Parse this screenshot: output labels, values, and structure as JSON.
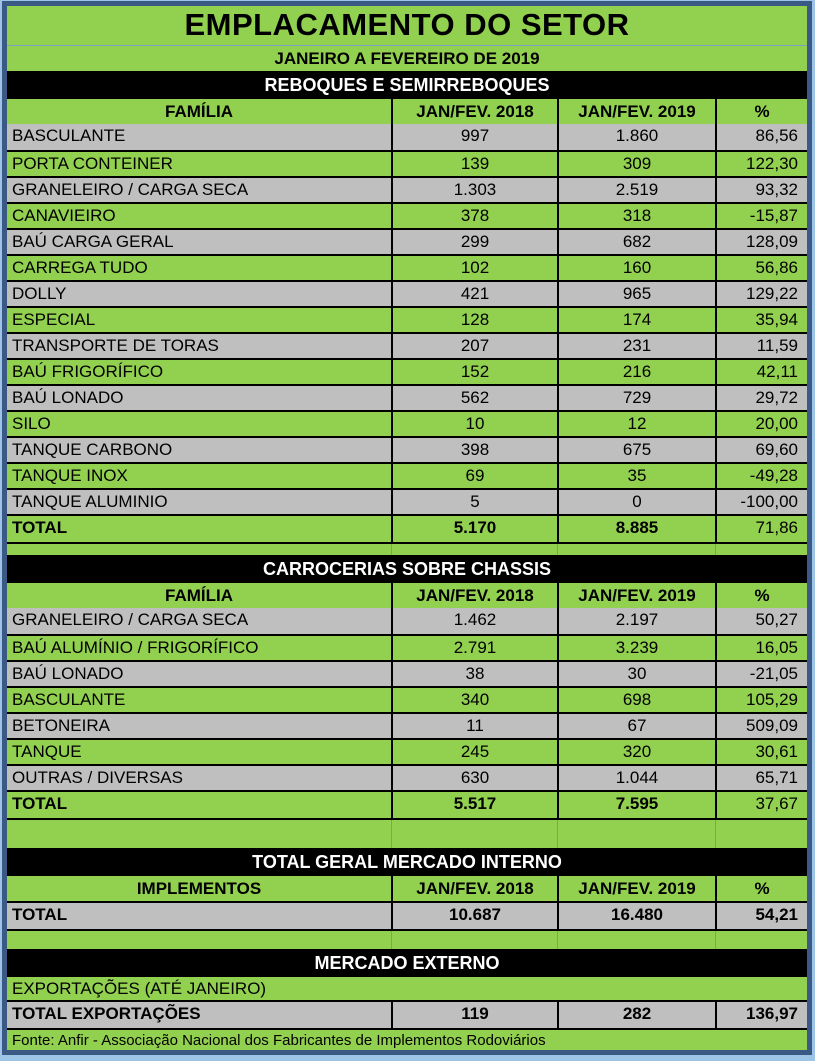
{
  "page": {
    "title": "EMPLACAMENTO DO SETOR",
    "subtitle": "JANEIRO A FEVEREIRO DE 2019"
  },
  "sections": [
    {
      "band": "REBOQUES E SEMIRREBOQUES",
      "columns": [
        "FAMÍLIA",
        "JAN/FEV. 2018",
        "JAN/FEV. 2019",
        "%"
      ],
      "rows": [
        {
          "family": "BASCULANTE",
          "y2018": "997",
          "y2019": "1.860",
          "pct": "86,56"
        },
        {
          "family": "PORTA CONTEINER",
          "y2018": "139",
          "y2019": "309",
          "pct": "122,30"
        },
        {
          "family": "GRANELEIRO / CARGA SECA",
          "y2018": "1.303",
          "y2019": "2.519",
          "pct": "93,32"
        },
        {
          "family": "CANAVIEIRO",
          "y2018": "378",
          "y2019": "318",
          "pct": "-15,87"
        },
        {
          "family": "BAÚ CARGA GERAL",
          "y2018": "299",
          "y2019": "682",
          "pct": "128,09"
        },
        {
          "family": "CARREGA TUDO",
          "y2018": "102",
          "y2019": "160",
          "pct": "56,86"
        },
        {
          "family": "DOLLY",
          "y2018": "421",
          "y2019": "965",
          "pct": "129,22"
        },
        {
          "family": "ESPECIAL",
          "y2018": "128",
          "y2019": "174",
          "pct": "35,94"
        },
        {
          "family": "TRANSPORTE DE TORAS",
          "y2018": "207",
          "y2019": "231",
          "pct": "11,59"
        },
        {
          "family": "BAÚ FRIGORÍFICO",
          "y2018": "152",
          "y2019": "216",
          "pct": "42,11"
        },
        {
          "family": "BAÚ LONADO",
          "y2018": "562",
          "y2019": "729",
          "pct": "29,72"
        },
        {
          "family": "SILO",
          "y2018": "10",
          "y2019": "12",
          "pct": "20,00"
        },
        {
          "family": "TANQUE CARBONO",
          "y2018": "398",
          "y2019": "675",
          "pct": "69,60"
        },
        {
          "family": "TANQUE INOX",
          "y2018": "69",
          "y2019": "35",
          "pct": "-49,28"
        },
        {
          "family": "TANQUE ALUMINIO",
          "y2018": "5",
          "y2019": "0",
          "pct": "-100,00"
        }
      ],
      "total": {
        "label": "TOTAL",
        "y2018": "5.170",
        "y2019": "8.885",
        "pct": "71,86"
      }
    },
    {
      "band": "CARROCERIAS SOBRE CHASSIS",
      "columns": [
        "FAMÍLIA",
        "JAN/FEV. 2018",
        "JAN/FEV. 2019",
        "%"
      ],
      "rows": [
        {
          "family": "GRANELEIRO / CARGA SECA",
          "y2018": "1.462",
          "y2019": "2.197",
          "pct": "50,27"
        },
        {
          "family": "BAÚ ALUMÍNIO / FRIGORÍFICO",
          "y2018": "2.791",
          "y2019": "3.239",
          "pct": "16,05"
        },
        {
          "family": "BAÚ LONADO",
          "y2018": "38",
          "y2019": "30",
          "pct": "-21,05"
        },
        {
          "family": "BASCULANTE",
          "y2018": "340",
          "y2019": "698",
          "pct": "105,29"
        },
        {
          "family": "BETONEIRA",
          "y2018": "11",
          "y2019": "67",
          "pct": "509,09"
        },
        {
          "family": "TANQUE",
          "y2018": "245",
          "y2019": "320",
          "pct": "30,61"
        },
        {
          "family": "OUTRAS / DIVERSAS",
          "y2018": "630",
          "y2019": "1.044",
          "pct": "65,71"
        }
      ],
      "total": {
        "label": "TOTAL",
        "y2018": "5.517",
        "y2019": "7.595",
        "pct": "37,67"
      }
    },
    {
      "band": "TOTAL GERAL MERCADO INTERNO",
      "columns": [
        "IMPLEMENTOS",
        "JAN/FEV. 2018",
        "JAN/FEV. 2019",
        "%"
      ],
      "total": {
        "label": "TOTAL",
        "y2018": "10.687",
        "y2019": "16.480",
        "pct": "54,21"
      }
    },
    {
      "band": "MERCADO EXTERNO",
      "note": "EXPORTAÇÕES (ATÉ JANEIRO)",
      "total": {
        "label": "TOTAL EXPORTAÇÕES",
        "y2018": "119",
        "y2019": "282",
        "pct": "136,97"
      }
    }
  ],
  "footer": "Fonte: Anfir - Associação Nacional dos Fabricantes de Implementos Rodoviários",
  "colors": {
    "row_green": "#92D050",
    "row_gray": "#BFBFBF",
    "band_bg": "#000000",
    "band_text": "#FFFFFF",
    "frame_border": "#3A5A85",
    "page_edge": "#9DC3E6"
  }
}
